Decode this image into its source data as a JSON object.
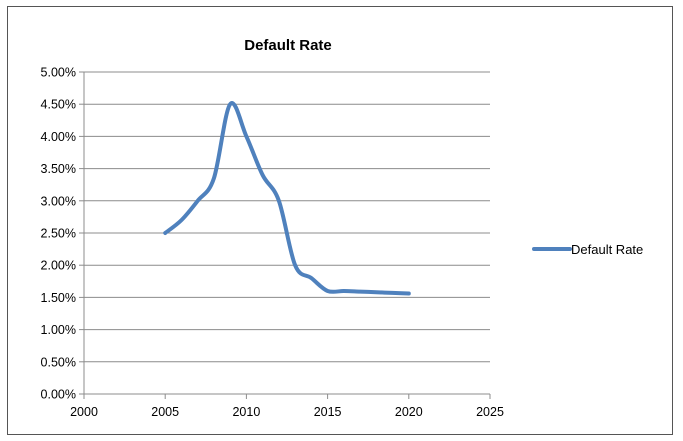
{
  "chart_data": {
    "type": "line",
    "title": "Default Rate",
    "xlabel": "",
    "ylabel": "",
    "xlim": [
      2000,
      2025
    ],
    "ylim": [
      0,
      0.05
    ],
    "x_ticks": [
      "2000",
      "2005",
      "2010",
      "2015",
      "2020",
      "2025"
    ],
    "y_ticks": [
      "0.00%",
      "0.50%",
      "1.00%",
      "1.50%",
      "2.00%",
      "2.50%",
      "3.00%",
      "3.50%",
      "4.00%",
      "4.50%",
      "5.00%"
    ],
    "grid": "horizontal",
    "legend_position": "right",
    "smoothed": true,
    "series": [
      {
        "name": "Default Rate",
        "color": "#4f81bd",
        "x": [
          2005,
          2006,
          2007,
          2008,
          2009,
          2010,
          2011,
          2012,
          2013,
          2014,
          2015,
          2016,
          2017,
          2018,
          2019,
          2020
        ],
        "y": [
          0.025,
          0.027,
          0.03,
          0.0335,
          0.045,
          0.04,
          0.034,
          0.03,
          0.02,
          0.018,
          0.016,
          0.016,
          0.0159,
          0.0158,
          0.0157,
          0.0156
        ]
      }
    ]
  }
}
